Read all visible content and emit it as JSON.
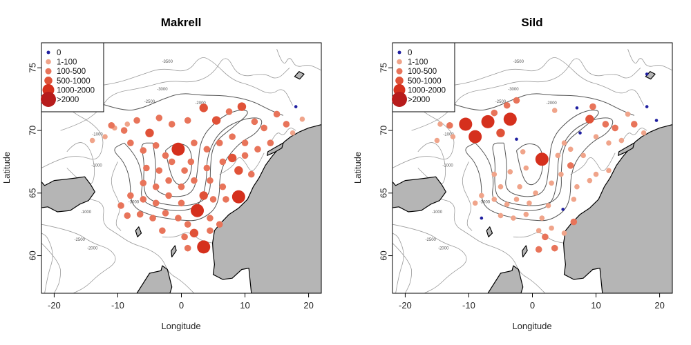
{
  "chart_data": [
    {
      "type": "scatter",
      "title": "Makrell",
      "xlabel": "Longitude",
      "ylabel": "Latitude",
      "xlim": [
        -22,
        22
      ],
      "ylim": [
        57,
        77
      ],
      "xticks": [
        "-20",
        "-10",
        "0",
        "10",
        "20"
      ],
      "yticks": [
        "60",
        "65",
        "70",
        "75"
      ],
      "legend": {
        "placement": "top-left",
        "entries": [
          {
            "label": "0",
            "class": 0
          },
          {
            "label": "1-100",
            "class": 1
          },
          {
            "label": "100-500",
            "class": 2
          },
          {
            "label": "500-1000",
            "class": 3
          },
          {
            "label": "1000-2000",
            "class": 4
          },
          {
            "label": ">2000",
            "class": 5
          }
        ]
      },
      "contour_labels": [
        "-3500",
        "-3000",
        "-2500",
        "-2000",
        "-1000",
        "-1000",
        "-2000",
        "-2500",
        "-3000",
        "-1000"
      ],
      "points": [
        {
          "lon": 18.0,
          "lat": 71.9,
          "class": 0
        },
        {
          "lon": -14.0,
          "lat": 69.2,
          "class": 1
        },
        {
          "lon": -12.0,
          "lat": 69.5,
          "class": 1
        },
        {
          "lon": -10.5,
          "lat": 70.2,
          "class": 1
        },
        {
          "lon": -8.5,
          "lat": 70.5,
          "class": 1
        },
        {
          "lon": -11.0,
          "lat": 70.4,
          "class": 2
        },
        {
          "lon": -9.0,
          "lat": 70.0,
          "class": 2
        },
        {
          "lon": -8.0,
          "lat": 69.0,
          "class": 2
        },
        {
          "lon": -7.0,
          "lat": 70.8,
          "class": 2
        },
        {
          "lon": -5.0,
          "lat": 69.8,
          "class": 3
        },
        {
          "lon": -3.5,
          "lat": 71.0,
          "class": 2
        },
        {
          "lon": -1.5,
          "lat": 70.5,
          "class": 2
        },
        {
          "lon": 1.0,
          "lat": 70.8,
          "class": 2
        },
        {
          "lon": 3.5,
          "lat": 71.8,
          "class": 3
        },
        {
          "lon": 5.5,
          "lat": 70.8,
          "class": 3
        },
        {
          "lon": 7.5,
          "lat": 71.5,
          "class": 2
        },
        {
          "lon": 9.5,
          "lat": 71.9,
          "class": 3
        },
        {
          "lon": 11.5,
          "lat": 70.7,
          "class": 2
        },
        {
          "lon": 13.0,
          "lat": 70.2,
          "class": 2
        },
        {
          "lon": 15.0,
          "lat": 71.3,
          "class": 2
        },
        {
          "lon": 16.5,
          "lat": 70.5,
          "class": 2
        },
        {
          "lon": 19.0,
          "lat": 70.9,
          "class": 1
        },
        {
          "lon": 17.5,
          "lat": 69.8,
          "class": 1
        },
        {
          "lon": -6.0,
          "lat": 68.4,
          "class": 2
        },
        {
          "lon": -4.0,
          "lat": 68.8,
          "class": 2
        },
        {
          "lon": -2.5,
          "lat": 68.0,
          "class": 2
        },
        {
          "lon": -0.5,
          "lat": 68.5,
          "class": 4
        },
        {
          "lon": 2.0,
          "lat": 69.0,
          "class": 2
        },
        {
          "lon": 4.0,
          "lat": 68.5,
          "class": 2
        },
        {
          "lon": 6.0,
          "lat": 69.0,
          "class": 2
        },
        {
          "lon": 8.0,
          "lat": 69.5,
          "class": 2
        },
        {
          "lon": 10.0,
          "lat": 69.0,
          "class": 2
        },
        {
          "lon": 12.0,
          "lat": 68.5,
          "class": 2
        },
        {
          "lon": 14.0,
          "lat": 69.0,
          "class": 2
        },
        {
          "lon": -5.5,
          "lat": 67.0,
          "class": 2
        },
        {
          "lon": -3.5,
          "lat": 66.8,
          "class": 2
        },
        {
          "lon": -1.5,
          "lat": 67.5,
          "class": 2
        },
        {
          "lon": 0.5,
          "lat": 66.8,
          "class": 2
        },
        {
          "lon": 1.5,
          "lat": 67.5,
          "class": 2
        },
        {
          "lon": 4.0,
          "lat": 67.0,
          "class": 2
        },
        {
          "lon": 6.5,
          "lat": 67.5,
          "class": 2
        },
        {
          "lon": 8.0,
          "lat": 67.8,
          "class": 3
        },
        {
          "lon": 10.0,
          "lat": 68.0,
          "class": 2
        },
        {
          "lon": -6.0,
          "lat": 65.8,
          "class": 2
        },
        {
          "lon": -4.0,
          "lat": 65.5,
          "class": 2
        },
        {
          "lon": -2.0,
          "lat": 66.0,
          "class": 2
        },
        {
          "lon": 0.0,
          "lat": 65.5,
          "class": 2
        },
        {
          "lon": 2.0,
          "lat": 66.0,
          "class": 2
        },
        {
          "lon": 4.5,
          "lat": 66.0,
          "class": 2
        },
        {
          "lon": 6.5,
          "lat": 65.5,
          "class": 2
        },
        {
          "lon": 9.0,
          "lat": 66.8,
          "class": 3
        },
        {
          "lon": 11.0,
          "lat": 66.5,
          "class": 2
        },
        {
          "lon": -8.0,
          "lat": 64.8,
          "class": 2
        },
        {
          "lon": -6.0,
          "lat": 64.5,
          "class": 2
        },
        {
          "lon": -4.0,
          "lat": 64.2,
          "class": 2
        },
        {
          "lon": -2.0,
          "lat": 64.8,
          "class": 2
        },
        {
          "lon": 0.0,
          "lat": 64.2,
          "class": 2
        },
        {
          "lon": 2.5,
          "lat": 63.6,
          "class": 4
        },
        {
          "lon": 3.5,
          "lat": 64.8,
          "class": 3
        },
        {
          "lon": 5.0,
          "lat": 64.5,
          "class": 2
        },
        {
          "lon": 7.0,
          "lat": 64.5,
          "class": 2
        },
        {
          "lon": 9.0,
          "lat": 64.7,
          "class": 4
        },
        {
          "lon": -9.5,
          "lat": 64.0,
          "class": 2
        },
        {
          "lon": -8.5,
          "lat": 63.2,
          "class": 2
        },
        {
          "lon": -6.5,
          "lat": 63.3,
          "class": 2
        },
        {
          "lon": -4.5,
          "lat": 63.0,
          "class": 2
        },
        {
          "lon": -2.5,
          "lat": 63.4,
          "class": 2
        },
        {
          "lon": -0.5,
          "lat": 63.0,
          "class": 2
        },
        {
          "lon": 1.0,
          "lat": 62.5,
          "class": 2
        },
        {
          "lon": 4.5,
          "lat": 63.0,
          "class": 2
        },
        {
          "lon": 6.0,
          "lat": 62.5,
          "class": 2
        },
        {
          "lon": -3.0,
          "lat": 62.0,
          "class": 2
        },
        {
          "lon": 0.5,
          "lat": 61.5,
          "class": 2
        },
        {
          "lon": 2.0,
          "lat": 61.8,
          "class": 3
        },
        {
          "lon": 4.5,
          "lat": 62.0,
          "class": 2
        },
        {
          "lon": 1.0,
          "lat": 60.6,
          "class": 2
        },
        {
          "lon": 3.5,
          "lat": 60.7,
          "class": 4
        }
      ]
    },
    {
      "type": "scatter",
      "title": "Sild",
      "xlabel": "Longitude",
      "ylabel": "Latitude",
      "xlim": [
        -22,
        22
      ],
      "ylim": [
        57,
        77
      ],
      "xticks": [
        "-20",
        "-10",
        "0",
        "10",
        "20"
      ],
      "yticks": [
        "60",
        "65",
        "70",
        "75"
      ],
      "legend": {
        "placement": "top-left",
        "entries": [
          {
            "label": "0",
            "class": 0
          },
          {
            "label": "1-100",
            "class": 1
          },
          {
            "label": "100-500",
            "class": 2
          },
          {
            "label": "500-1000",
            "class": 3
          },
          {
            "label": "1000-2000",
            "class": 4
          },
          {
            "label": ">2000",
            "class": 5
          }
        ]
      },
      "contour_labels": [
        "-3500",
        "-3000",
        "-2500",
        "-2000",
        "-1000",
        "-1000",
        "-2000",
        "-2500",
        "-3000",
        "-1000"
      ],
      "points": [
        {
          "lon": 18.0,
          "lat": 74.5,
          "class": 0
        },
        {
          "lon": 18.0,
          "lat": 71.9,
          "class": 0
        },
        {
          "lon": 19.5,
          "lat": 70.8,
          "class": 0
        },
        {
          "lon": 7.0,
          "lat": 71.8,
          "class": 0
        },
        {
          "lon": 7.5,
          "lat": 69.8,
          "class": 0
        },
        {
          "lon": -2.5,
          "lat": 69.3,
          "class": 0
        },
        {
          "lon": 4.8,
          "lat": 63.7,
          "class": 0
        },
        {
          "lon": -8.0,
          "lat": 63.0,
          "class": 0
        },
        {
          "lon": -14.5,
          "lat": 70.5,
          "class": 1
        },
        {
          "lon": -15.0,
          "lat": 69.2,
          "class": 1
        },
        {
          "lon": -12.5,
          "lat": 69.5,
          "class": 1
        },
        {
          "lon": -13.0,
          "lat": 70.4,
          "class": 2
        },
        {
          "lon": -10.5,
          "lat": 70.5,
          "class": 4
        },
        {
          "lon": -9.0,
          "lat": 69.5,
          "class": 4
        },
        {
          "lon": -7.0,
          "lat": 70.7,
          "class": 4
        },
        {
          "lon": -5.0,
          "lat": 69.8,
          "class": 3
        },
        {
          "lon": -3.5,
          "lat": 70.9,
          "class": 4
        },
        {
          "lon": -2.5,
          "lat": 72.4,
          "class": 2
        },
        {
          "lon": -4.0,
          "lat": 72.0,
          "class": 2
        },
        {
          "lon": -6.0,
          "lat": 71.4,
          "class": 2
        },
        {
          "lon": 3.5,
          "lat": 71.6,
          "class": 1
        },
        {
          "lon": 9.5,
          "lat": 71.9,
          "class": 2
        },
        {
          "lon": 9.0,
          "lat": 70.9,
          "class": 3
        },
        {
          "lon": 11.5,
          "lat": 70.5,
          "class": 2
        },
        {
          "lon": 13.0,
          "lat": 70.2,
          "class": 2
        },
        {
          "lon": 15.0,
          "lat": 71.3,
          "class": 1
        },
        {
          "lon": 16.0,
          "lat": 70.5,
          "class": 2
        },
        {
          "lon": 17.5,
          "lat": 69.8,
          "class": 1
        },
        {
          "lon": 10.0,
          "lat": 69.5,
          "class": 1
        },
        {
          "lon": 12.0,
          "lat": 69.0,
          "class": 1
        },
        {
          "lon": 14.0,
          "lat": 69.2,
          "class": 1
        },
        {
          "lon": 5.0,
          "lat": 69.0,
          "class": 1
        },
        {
          "lon": -1.5,
          "lat": 68.3,
          "class": 1
        },
        {
          "lon": 1.5,
          "lat": 67.7,
          "class": 4
        },
        {
          "lon": 4.0,
          "lat": 68.0,
          "class": 1
        },
        {
          "lon": 6.0,
          "lat": 68.5,
          "class": 1
        },
        {
          "lon": 8.0,
          "lat": 68.0,
          "class": 1
        },
        {
          "lon": -6.0,
          "lat": 66.5,
          "class": 1
        },
        {
          "lon": -3.5,
          "lat": 66.7,
          "class": 1
        },
        {
          "lon": -1.0,
          "lat": 67.0,
          "class": 1
        },
        {
          "lon": 4.5,
          "lat": 66.5,
          "class": 1
        },
        {
          "lon": 6.0,
          "lat": 67.2,
          "class": 2
        },
        {
          "lon": 10.0,
          "lat": 66.5,
          "class": 1
        },
        {
          "lon": 12.0,
          "lat": 66.8,
          "class": 1
        },
        {
          "lon": -5.0,
          "lat": 65.5,
          "class": 1
        },
        {
          "lon": -2.0,
          "lat": 65.5,
          "class": 1
        },
        {
          "lon": 0.5,
          "lat": 65.0,
          "class": 1
        },
        {
          "lon": 3.0,
          "lat": 65.8,
          "class": 1
        },
        {
          "lon": 7.0,
          "lat": 65.5,
          "class": 1
        },
        {
          "lon": 9.0,
          "lat": 66.0,
          "class": 1
        },
        {
          "lon": -8.0,
          "lat": 64.8,
          "class": 1
        },
        {
          "lon": -9.0,
          "lat": 64.2,
          "class": 1
        },
        {
          "lon": -6.0,
          "lat": 64.5,
          "class": 1
        },
        {
          "lon": -4.0,
          "lat": 64.1,
          "class": 1
        },
        {
          "lon": -2.5,
          "lat": 64.5,
          "class": 1
        },
        {
          "lon": -0.5,
          "lat": 64.2,
          "class": 1
        },
        {
          "lon": 2.5,
          "lat": 64.0,
          "class": 1
        },
        {
          "lon": 6.5,
          "lat": 64.5,
          "class": 1
        },
        {
          "lon": -5.0,
          "lat": 63.2,
          "class": 1
        },
        {
          "lon": -3.0,
          "lat": 63.0,
          "class": 1
        },
        {
          "lon": -1.0,
          "lat": 63.3,
          "class": 1
        },
        {
          "lon": 1.5,
          "lat": 63.0,
          "class": 1
        },
        {
          "lon": 6.5,
          "lat": 62.7,
          "class": 2
        },
        {
          "lon": 1.0,
          "lat": 62.0,
          "class": 1
        },
        {
          "lon": 3.0,
          "lat": 62.2,
          "class": 1
        },
        {
          "lon": 5.0,
          "lat": 61.8,
          "class": 1
        },
        {
          "lon": 2.0,
          "lat": 61.5,
          "class": 2
        },
        {
          "lon": 1.0,
          "lat": 60.5,
          "class": 2
        },
        {
          "lon": 3.5,
          "lat": 60.6,
          "class": 2
        }
      ]
    }
  ],
  "class_colors": [
    "#1f1fa0",
    "#f0a48a",
    "#e8745a",
    "#e05238",
    "#d5301d",
    "#b71c1c"
  ],
  "land_color": "#b5b5b5",
  "contour_colors": [
    "#999999",
    "#555555"
  ]
}
